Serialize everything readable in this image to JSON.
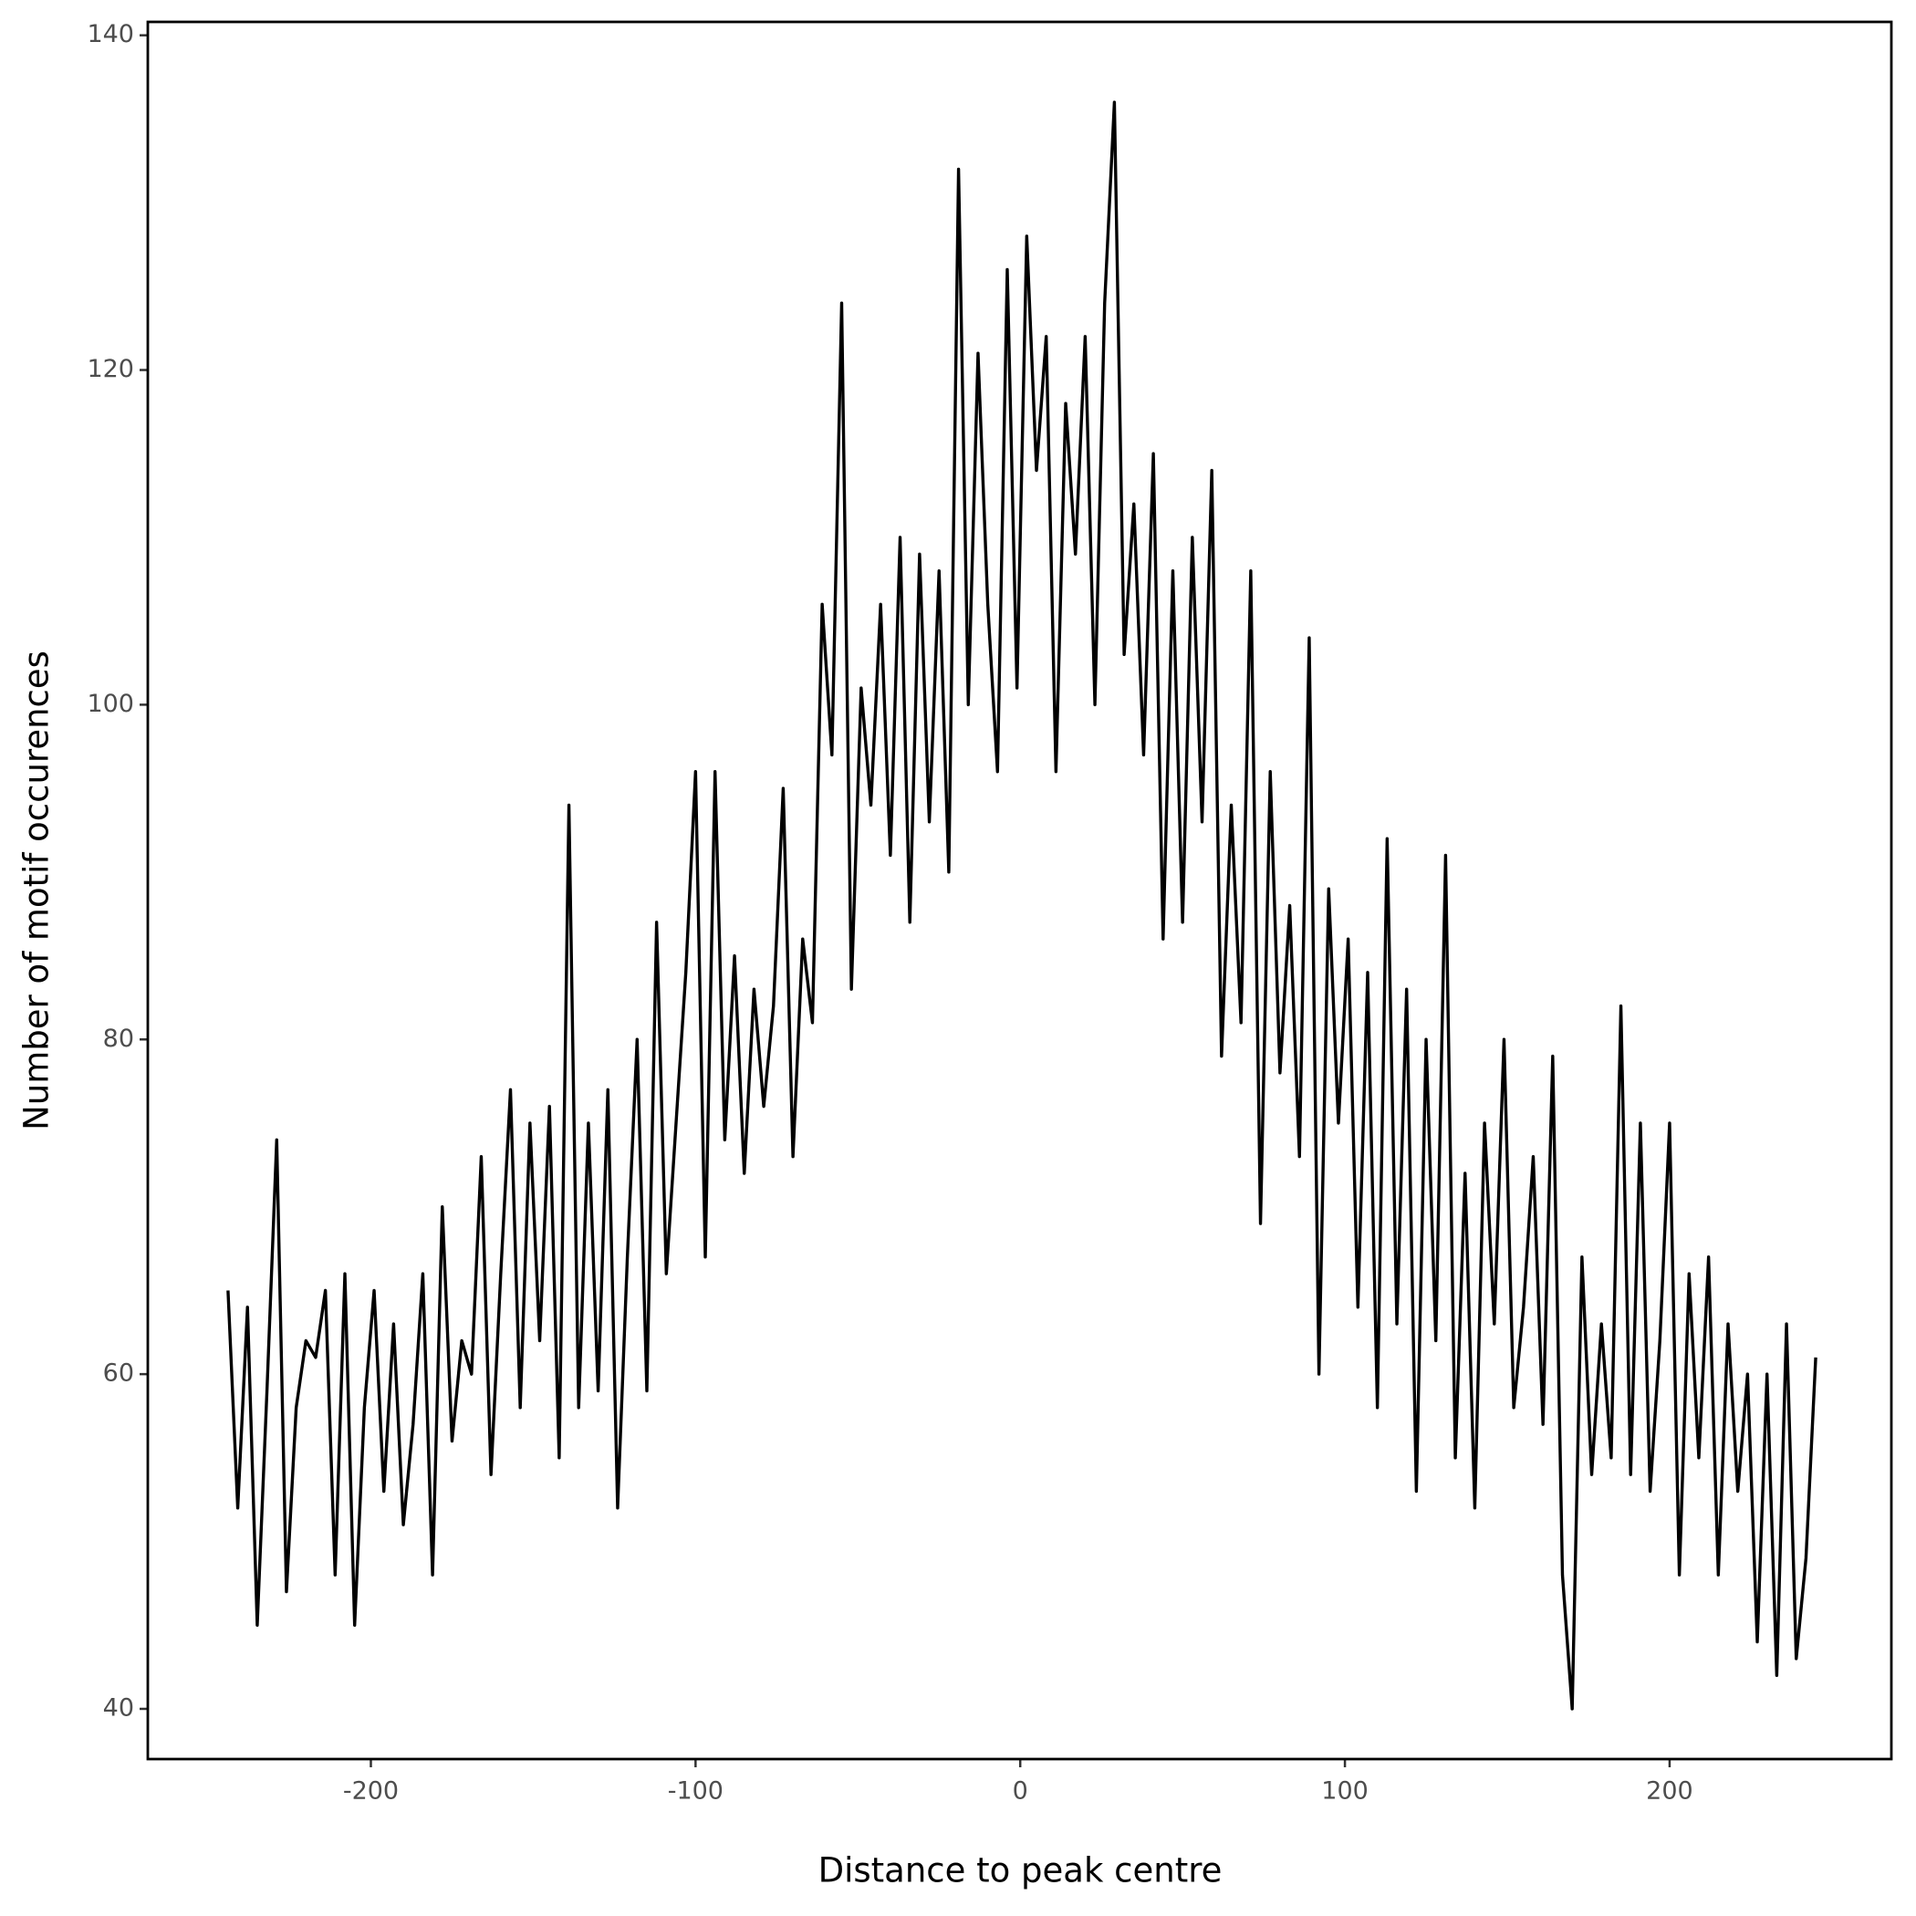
{
  "chart_data": {
    "type": "line",
    "x_label": "Distance to peak centre",
    "y_label": "Number of motif occurences",
    "color": "#000000",
    "x": [
      -244,
      -241,
      -238,
      -235,
      -232,
      -229,
      -226,
      -223,
      -220,
      -217,
      -214,
      -211,
      -208,
      -205,
      -202,
      -199,
      -196,
      -193,
      -190,
      -187,
      -184,
      -181,
      -178,
      -175,
      -172,
      -169,
      -166,
      -163,
      -160,
      -157,
      -154,
      -151,
      -148,
      -145,
      -142,
      -139,
      -136,
      -133,
      -130,
      -127,
      -124,
      -121,
      -118,
      -115,
      -112,
      -109,
      -106,
      -103,
      -100,
      -97,
      -94,
      -91,
      -88,
      -85,
      -82,
      -79,
      -76,
      -73,
      -70,
      -67,
      -64,
      -61,
      -58,
      -55,
      -52,
      -49,
      -46,
      -43,
      -40,
      -37,
      -34,
      -31,
      -28,
      -25,
      -22,
      -19,
      -16,
      -13,
      -10,
      -7,
      -4,
      -1,
      2,
      5,
      8,
      11,
      14,
      17,
      20,
      23,
      26,
      29,
      32,
      35,
      38,
      41,
      44,
      47,
      50,
      53,
      56,
      59,
      62,
      65,
      68,
      71,
      74,
      77,
      80,
      83,
      86,
      89,
      92,
      95,
      98,
      101,
      104,
      107,
      110,
      113,
      116,
      119,
      122,
      125,
      128,
      131,
      134,
      137,
      140,
      143,
      146,
      149,
      152,
      155,
      158,
      161,
      164,
      167,
      170,
      173,
      176,
      179,
      182,
      185,
      188,
      191,
      194,
      197,
      200,
      203,
      206,
      209,
      212,
      215,
      218,
      221,
      224,
      227,
      230,
      233,
      236,
      239,
      242,
      245
    ],
    "values": [
      65,
      52,
      64,
      45,
      59,
      74,
      47,
      58,
      62,
      61,
      65,
      48,
      66,
      45,
      58,
      65,
      53,
      63,
      51,
      57,
      66,
      48,
      70,
      56,
      62,
      60,
      73,
      54,
      66,
      77,
      58,
      75,
      62,
      76,
      55,
      94,
      58,
      75,
      59,
      77,
      52,
      67,
      80,
      59,
      87,
      66,
      75,
      84,
      96,
      67,
      96,
      74,
      85,
      72,
      83,
      76,
      82,
      95,
      73,
      86,
      81,
      106,
      97,
      124,
      83,
      101,
      94,
      106,
      91,
      110,
      87,
      109,
      93,
      108,
      90,
      132,
      100,
      121,
      106,
      96,
      126,
      101,
      128,
      114,
      122,
      96,
      118,
      109,
      122,
      100,
      124,
      136,
      103,
      112,
      97,
      115,
      86,
      108,
      87,
      110,
      93,
      114,
      79,
      94,
      81,
      108,
      69,
      96,
      78,
      88,
      73,
      104,
      60,
      89,
      75,
      86,
      64,
      84,
      58,
      92,
      63,
      83,
      53,
      80,
      62,
      91,
      55,
      72,
      52,
      75,
      63,
      80,
      58,
      64,
      73,
      57,
      79,
      48,
      40,
      67,
      54,
      63,
      55,
      82,
      54,
      75,
      53,
      62,
      75,
      48,
      66,
      55,
      67,
      48,
      63,
      53,
      60,
      44,
      60,
      42,
      63,
      43,
      49,
      61
    ],
    "xlim": [
      -268.7,
      268.3
    ],
    "ylim": [
      37,
      140.8
    ],
    "xticks": [
      -200,
      -100,
      0,
      100,
      200
    ],
    "yticks": [
      40,
      60,
      80,
      100,
      120,
      140
    ]
  }
}
